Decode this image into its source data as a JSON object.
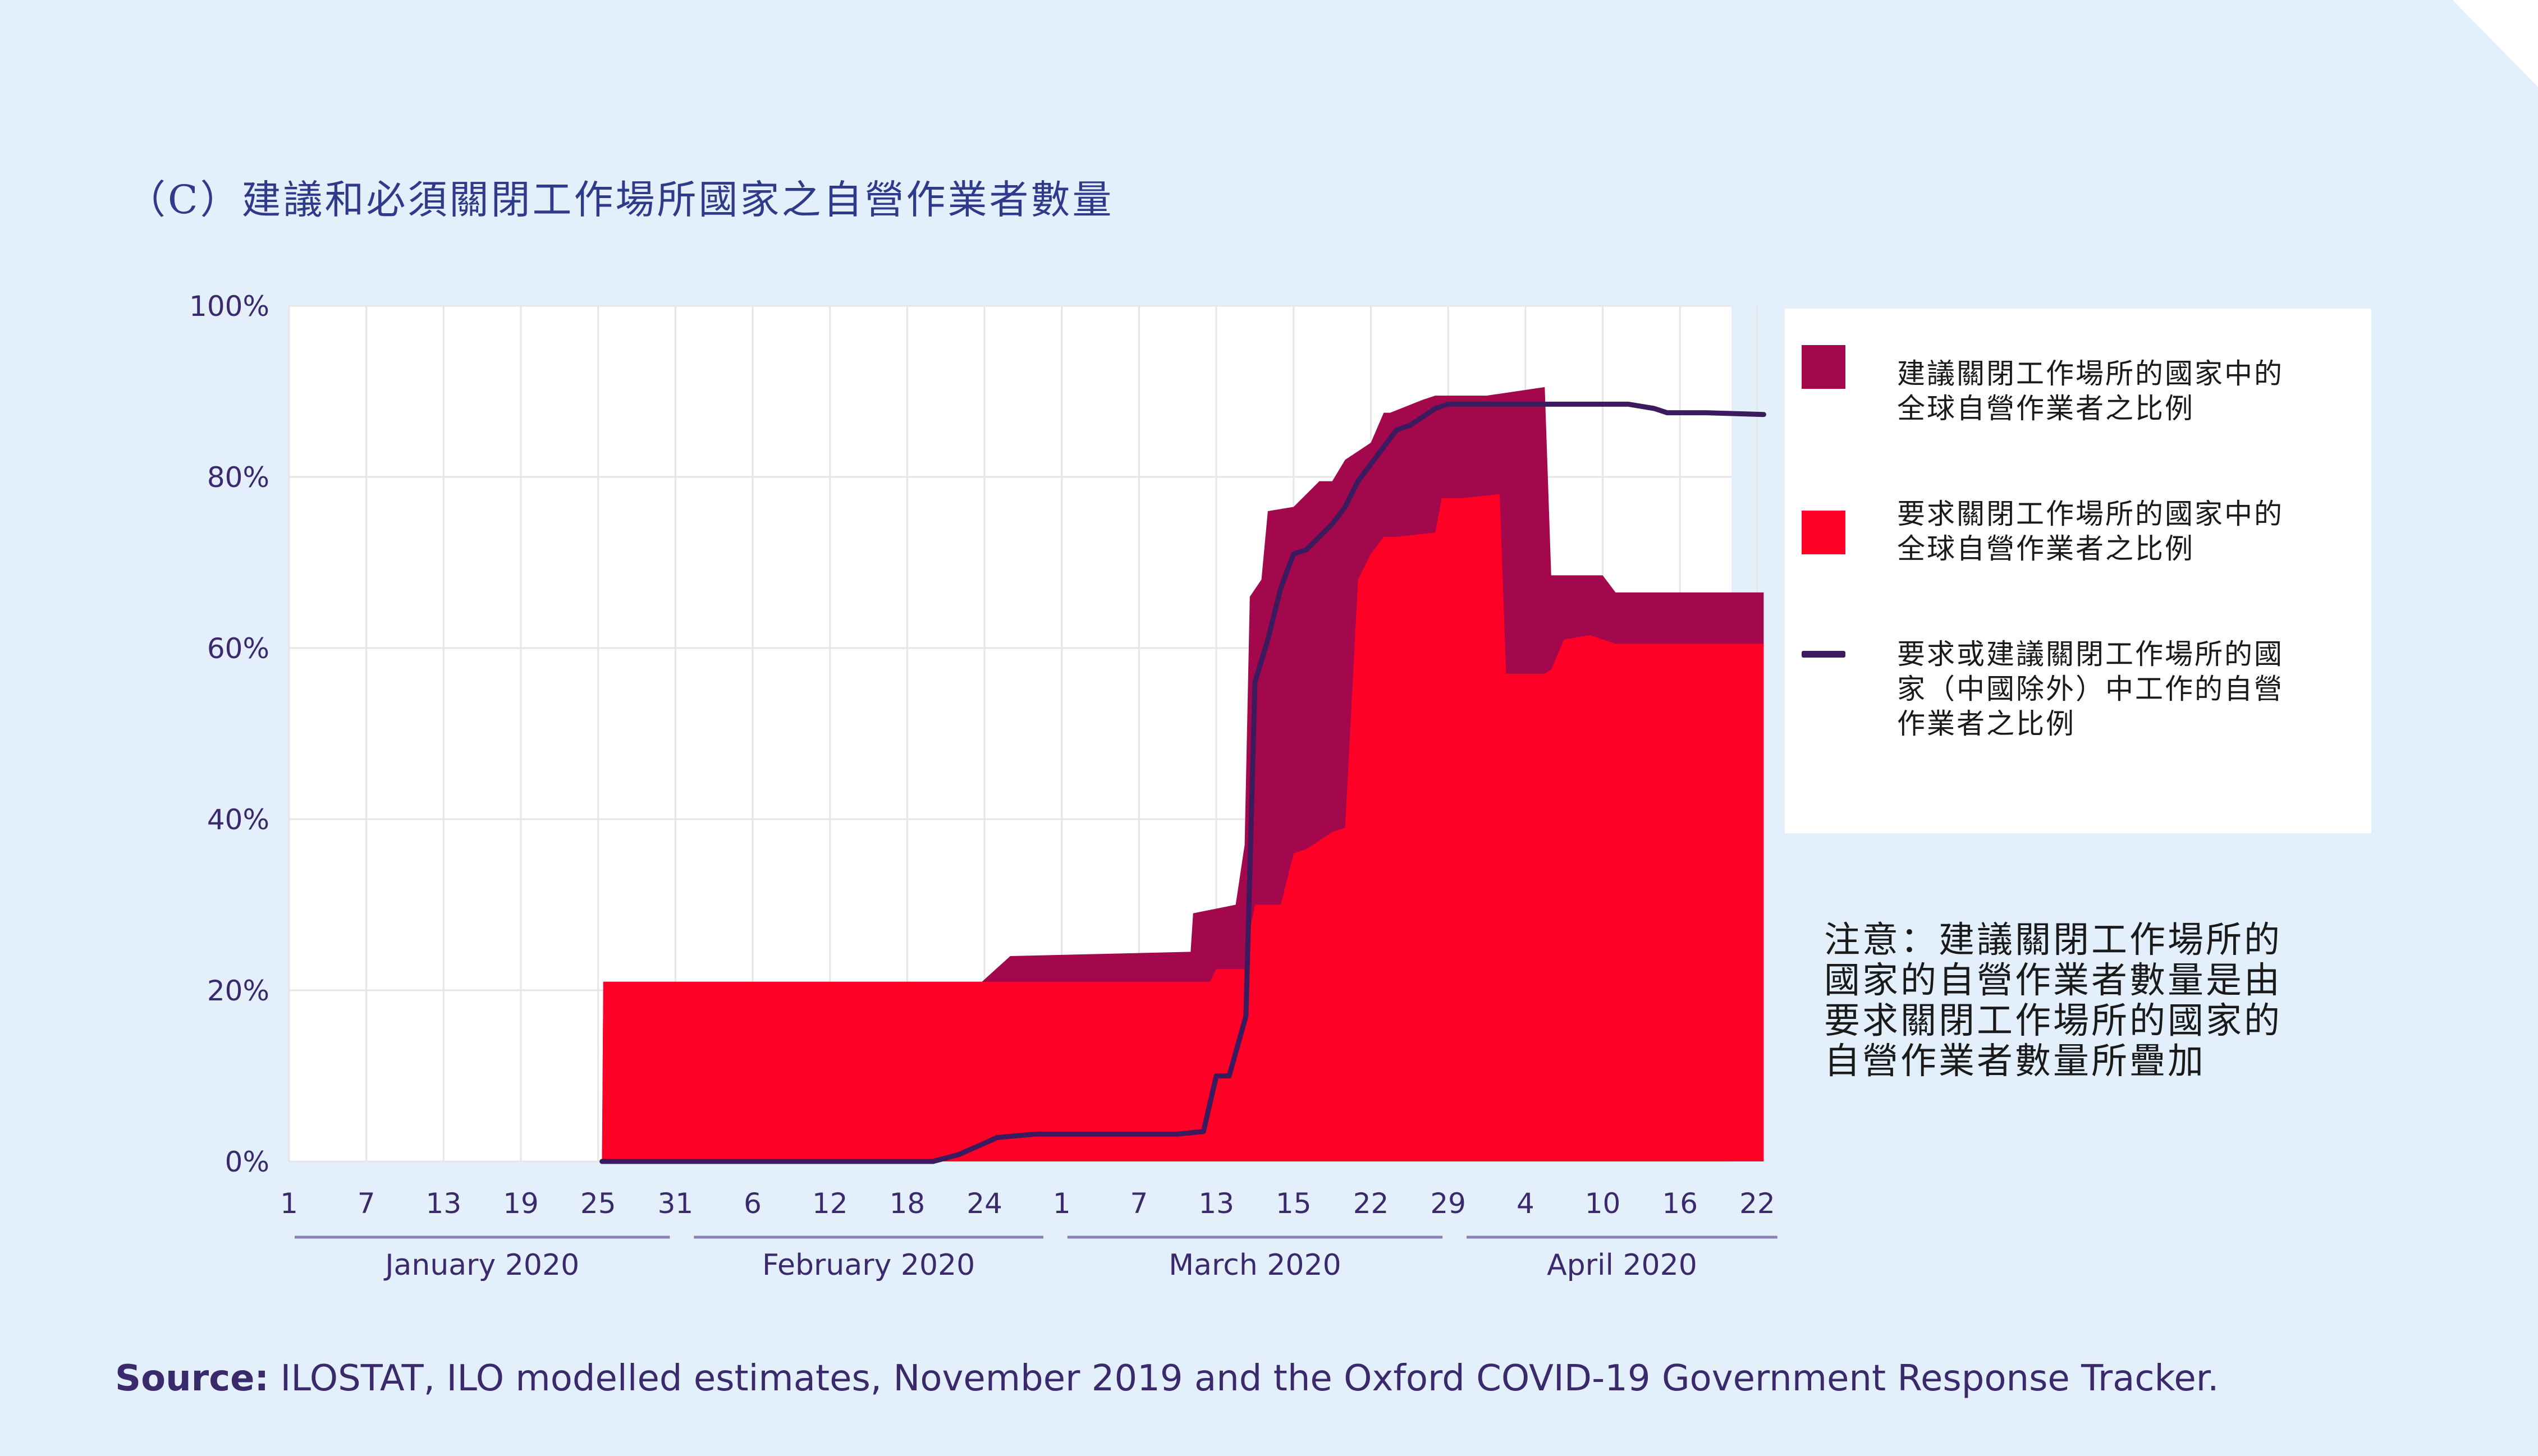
{
  "colors": {
    "background": "#e3f0fb",
    "plot_background": "#ffffff",
    "advised_fill": "#a3084d",
    "required_fill": "#ff0026",
    "line": "#3b1a5e",
    "axis_text": "#3b2a6b",
    "month_line": "#8b7fb0"
  },
  "title": "（C）建議和必須關閉工作場所國家之自營作業者數量",
  "legend": {
    "items": [
      {
        "label_line1": "建議關閉工作場所的國家中的",
        "label_line2": "全球自營作業者之比例",
        "color": "#a3084d"
      },
      {
        "label_line1": "要求關閉工作場所的國家中的",
        "label_line2": "全球自營作業者之比例",
        "color": "#ff0026"
      },
      {
        "label_line1": "要求或建議關閉工作場所的國",
        "label_line2": "家（中國除外）中工作的自營",
        "label_line3": "作業者之比例",
        "color": "#3b1a5e"
      }
    ]
  },
  "note": {
    "line1": "注意：建議關閉工作場所的",
    "line2": "國家的自營作業者數量是由",
    "line3": "要求關閉工作場所的國家的",
    "line4": "自營作業者數量所疊加"
  },
  "source": {
    "label": "Source:",
    "text": " ILOSTAT, ILO modelled estimates, November 2019 and the Oxford COVID-19 Government Response Tracker."
  },
  "chart_data": {
    "type": "area",
    "x_unit": "day index (0 = 1 January 2020)",
    "xlim": [
      0,
      112
    ],
    "ylim": [
      0,
      100
    ],
    "y_ticks": [
      0,
      20,
      40,
      60,
      80,
      100
    ],
    "y_tick_labels": [
      "0%",
      "20%",
      "40%",
      "60%",
      "80%",
      "100%"
    ],
    "x_ticks": [
      0,
      6,
      12,
      18,
      24,
      30,
      36,
      42,
      48,
      54,
      60,
      66,
      72,
      78,
      84,
      90,
      96,
      102,
      108,
      114,
      120
    ],
    "x_tick_labels": [
      "1",
      "7",
      "13",
      "19",
      "25",
      "31",
      "6",
      "12",
      "18",
      "24",
      "1",
      "7",
      "13",
      "15",
      "22",
      "29",
      "4",
      "10",
      "16",
      "22"
    ],
    "x_tick_positions": [
      0,
      6,
      12,
      18,
      24,
      30,
      36,
      42,
      48,
      54,
      60,
      66,
      72,
      78,
      84,
      90,
      96,
      102,
      108,
      114
    ],
    "months": [
      {
        "label": "January 2020",
        "start": 0,
        "end": 30
      },
      {
        "label": "February 2020",
        "start": 31,
        "end": 59
      },
      {
        "label": "March 2020",
        "start": 60,
        "end": 90
      },
      {
        "label": "April 2020",
        "start": 91,
        "end": 116
      }
    ],
    "series": [
      {
        "name": "建議關閉工作場所的國家中的全球自營作業者之比例",
        "x": [
          24.3,
          24.4,
          53.8,
          56,
          70,
          70.2,
          73.5,
          74.2,
          74.6,
          75.5,
          76,
          78,
          79,
          80,
          81,
          82,
          82.5,
          84,
          85,
          85.5,
          88,
          89,
          93,
          97.5,
          98,
          100,
          102,
          103,
          114.5,
          114.5
        ],
        "values": [
          0,
          21,
          21,
          24,
          24.5,
          29,
          30,
          37,
          66,
          68,
          76,
          76.5,
          78,
          79.5,
          79.5,
          82,
          82.5,
          84,
          87.5,
          87.5,
          89,
          89.5,
          89.5,
          90.5,
          68.5,
          68.5,
          68.5,
          66.5,
          66.5,
          0
        ]
      },
      {
        "name": "要求關閉工作場所的國家中的全球自營作業者之比例",
        "x": [
          24.3,
          24.4,
          71.5,
          72,
          74.3,
          74.6,
          75,
          76,
          77,
          78,
          79,
          80,
          81,
          82,
          83,
          84,
          85,
          86,
          89,
          89.5,
          91,
          94,
          94.5,
          97.5,
          98,
          99,
          101,
          103,
          114.5,
          114.5
        ],
        "values": [
          0,
          21,
          21,
          22.5,
          22.5,
          27,
          30,
          30,
          30,
          36,
          36.5,
          37.5,
          38.5,
          39,
          68,
          71,
          73,
          73,
          73.5,
          77.5,
          77.5,
          78,
          57,
          57,
          57.5,
          61,
          61.5,
          60.5,
          60.5,
          0
        ]
      },
      {
        "name": "要求或建議關閉工作場所的國家（中國除外）中工作的自營作業者之比例",
        "x": [
          24.3,
          50,
          52,
          55,
          58,
          64,
          69,
          71,
          72,
          73,
          74.3,
          75,
          76,
          77,
          78,
          79,
          80,
          81,
          82,
          83,
          84,
          85,
          86,
          87,
          89,
          90,
          92,
          96,
          104,
          106,
          107,
          108,
          110,
          114.5
        ],
        "values": [
          0,
          0,
          0.8,
          2.8,
          3.2,
          3.2,
          3.2,
          3.5,
          10,
          10,
          17,
          56,
          61,
          67,
          71,
          71.5,
          73,
          74.5,
          76.5,
          79.5,
          81.5,
          83.5,
          85.5,
          86,
          88,
          88.5,
          88.5,
          88.5,
          88.5,
          88,
          87.5,
          87.5,
          87.5,
          87.3
        ]
      }
    ]
  }
}
